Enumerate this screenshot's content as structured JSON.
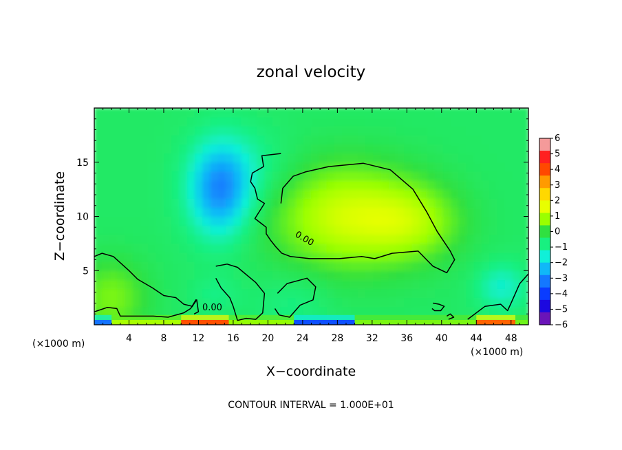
{
  "chart_data": {
    "type": "heatmap",
    "title": "zonal velocity",
    "xlabel": "X−coordinate",
    "ylabel": "Z−coordinate",
    "x_unit": "(×1000 m)",
    "y_unit": "(×1000 m)",
    "xlim": [
      0,
      50
    ],
    "ylim": [
      0,
      20
    ],
    "x_ticks": [
      "4",
      "8",
      "12",
      "16",
      "20",
      "24",
      "28",
      "32",
      "36",
      "40",
      "44",
      "48"
    ],
    "y_ticks": [
      "5",
      "10",
      "15"
    ],
    "colorbar": {
      "range": [
        -6,
        6
      ],
      "ticks": [
        "6",
        "5",
        "4",
        "3",
        "2",
        "1",
        "0",
        "−1",
        "−2",
        "−3",
        "−4",
        "−5",
        "−6"
      ],
      "colors": [
        "#f49a9a",
        "#ff2020",
        "#ff4800",
        "#ff9a00",
        "#ffd800",
        "#e8ff00",
        "#9aff00",
        "#30e040",
        "#18f080",
        "#10f0d8",
        "#10b8f8",
        "#1478ff",
        "#0a3cff",
        "#1c08e0",
        "#6a14b8"
      ]
    },
    "background_value": -0.5,
    "features": [
      {
        "kind": "min",
        "x": 14.5,
        "z": 12.5,
        "value": -3.2,
        "sx": 2.5,
        "sz": 3.0
      },
      {
        "kind": "min",
        "x": 18.5,
        "z": 14.5,
        "value": -1.0,
        "sx": 3.5,
        "sz": 2.5
      },
      {
        "kind": "max",
        "x": 29,
        "z": 10,
        "value": 1.4,
        "sx": 6,
        "sz": 3.5
      },
      {
        "kind": "max",
        "x": 37,
        "z": 9.5,
        "value": 0.6,
        "sx": 4,
        "sz": 2.5
      },
      {
        "kind": "max",
        "x": 2,
        "z": 2.5,
        "value": 0.6,
        "sx": 3,
        "sz": 2.5
      },
      {
        "kind": "min",
        "x": 47,
        "z": 3.5,
        "value": -1.6,
        "sx": 2,
        "sz": 1.5
      },
      {
        "kind": "min",
        "x": 23,
        "z": 2,
        "value": -0.9,
        "sx": 3,
        "sz": 2
      },
      {
        "kind": "min",
        "x": 14,
        "z": 2.8,
        "value": -0.9,
        "sx": 2,
        "sz": 1.2
      }
    ],
    "surface_bands": [
      {
        "x0": 0,
        "x1": 2,
        "value": -3.5
      },
      {
        "x0": 2,
        "x1": 10,
        "value": 1.0
      },
      {
        "x0": 10,
        "x1": 15.5,
        "value": 4.2
      },
      {
        "x0": 15.5,
        "x1": 23,
        "value": 0.8
      },
      {
        "x0": 23,
        "x1": 30,
        "value": -4.0
      },
      {
        "x0": 30,
        "x1": 44,
        "value": 0.6
      },
      {
        "x0": 44,
        "x1": 48.5,
        "value": 4.0
      },
      {
        "x0": 48.5,
        "x1": 50,
        "value": 0.5
      }
    ],
    "contour_labels": [
      "0.00",
      "0.00"
    ],
    "contour_value": 0.0,
    "contours": [
      [
        [
          21.5,
          15.8
        ],
        [
          19.3,
          15.6
        ],
        [
          19.5,
          14.6
        ],
        [
          18.2,
          14.0
        ],
        [
          18.0,
          13.2
        ],
        [
          18.5,
          12.6
        ],
        [
          18.8,
          11.6
        ],
        [
          19.6,
          11.2
        ],
        [
          18.5,
          9.8
        ],
        [
          19.8,
          9.0
        ],
        [
          19.8,
          8.4
        ],
        [
          20.3,
          7.8
        ],
        [
          20.9,
          7.2
        ],
        [
          21.6,
          6.6
        ],
        [
          22.6,
          6.3
        ],
        [
          24.8,
          6.1
        ],
        [
          28.2,
          6.1
        ],
        [
          30.8,
          6.3
        ],
        [
          32.3,
          6.1
        ],
        [
          34.3,
          6.6
        ],
        [
          37.3,
          6.8
        ],
        [
          39.0,
          5.4
        ],
        [
          40.6,
          4.8
        ],
        [
          41.5,
          6.0
        ],
        [
          41.0,
          6.8
        ],
        [
          39.5,
          8.6
        ],
        [
          38.3,
          10.4
        ],
        [
          36.7,
          12.5
        ],
        [
          34.1,
          14.3
        ],
        [
          31.0,
          14.9
        ],
        [
          27.0,
          14.6
        ],
        [
          24.3,
          14.1
        ],
        [
          22.9,
          13.7
        ],
        [
          21.7,
          12.6
        ],
        [
          21.5,
          11.2
        ]
      ],
      [
        [
          0.0,
          6.3
        ],
        [
          0.9,
          6.6
        ],
        [
          2.2,
          6.3
        ],
        [
          4.0,
          5.0
        ],
        [
          5.0,
          4.2
        ],
        [
          6.7,
          3.4
        ],
        [
          8.0,
          2.7
        ],
        [
          9.4,
          2.5
        ],
        [
          10.3,
          1.9
        ],
        [
          11.3,
          1.7
        ],
        [
          11.7,
          2.3
        ],
        [
          11.1,
          1.5
        ],
        [
          10.3,
          1.1
        ],
        [
          8.5,
          0.7
        ],
        [
          6.8,
          0.8
        ],
        [
          4.5,
          0.8
        ],
        [
          3.0,
          0.8
        ],
        [
          2.6,
          1.5
        ],
        [
          1.5,
          1.6
        ],
        [
          0.4,
          1.3
        ],
        [
          0.0,
          1.2
        ]
      ],
      [
        [
          14.0,
          5.4
        ],
        [
          15.3,
          5.6
        ],
        [
          16.5,
          5.3
        ],
        [
          18.6,
          3.9
        ],
        [
          19.6,
          2.9
        ],
        [
          19.4,
          1.1
        ],
        [
          18.6,
          0.5
        ],
        [
          17.5,
          0.6
        ],
        [
          16.5,
          0.4
        ],
        [
          16.0,
          1.7
        ],
        [
          15.6,
          2.5
        ],
        [
          14.6,
          3.4
        ],
        [
          14.0,
          4.3
        ]
      ],
      [
        [
          21.1,
          2.9
        ],
        [
          22.2,
          3.8
        ],
        [
          24.5,
          4.3
        ],
        [
          25.5,
          3.5
        ],
        [
          25.2,
          2.3
        ],
        [
          23.7,
          1.8
        ],
        [
          22.5,
          0.7
        ],
        [
          21.3,
          0.9
        ],
        [
          20.8,
          1.5
        ]
      ],
      [
        [
          39.0,
          2.0
        ],
        [
          39.7,
          1.9
        ],
        [
          40.3,
          1.7
        ],
        [
          39.9,
          1.3
        ],
        [
          39.2,
          1.3
        ],
        [
          38.9,
          1.5
        ]
      ],
      [
        [
          40.6,
          0.8
        ],
        [
          41.0,
          1.0
        ],
        [
          41.4,
          0.7
        ],
        [
          40.8,
          0.5
        ]
      ],
      [
        [
          43.0,
          0.5
        ],
        [
          45.0,
          1.7
        ],
        [
          46.8,
          1.9
        ],
        [
          47.6,
          1.3
        ],
        [
          48.0,
          2.0
        ],
        [
          49.0,
          3.8
        ],
        [
          50.0,
          4.7
        ]
      ],
      [
        [
          11.2,
          1.6
        ],
        [
          11.8,
          2.3
        ],
        [
          12.0,
          1.2
        ],
        [
          11.5,
          1.0
        ]
      ]
    ]
  },
  "footer": {
    "contour_interval": "CONTOUR INTERVAL = 1.000E+01"
  }
}
